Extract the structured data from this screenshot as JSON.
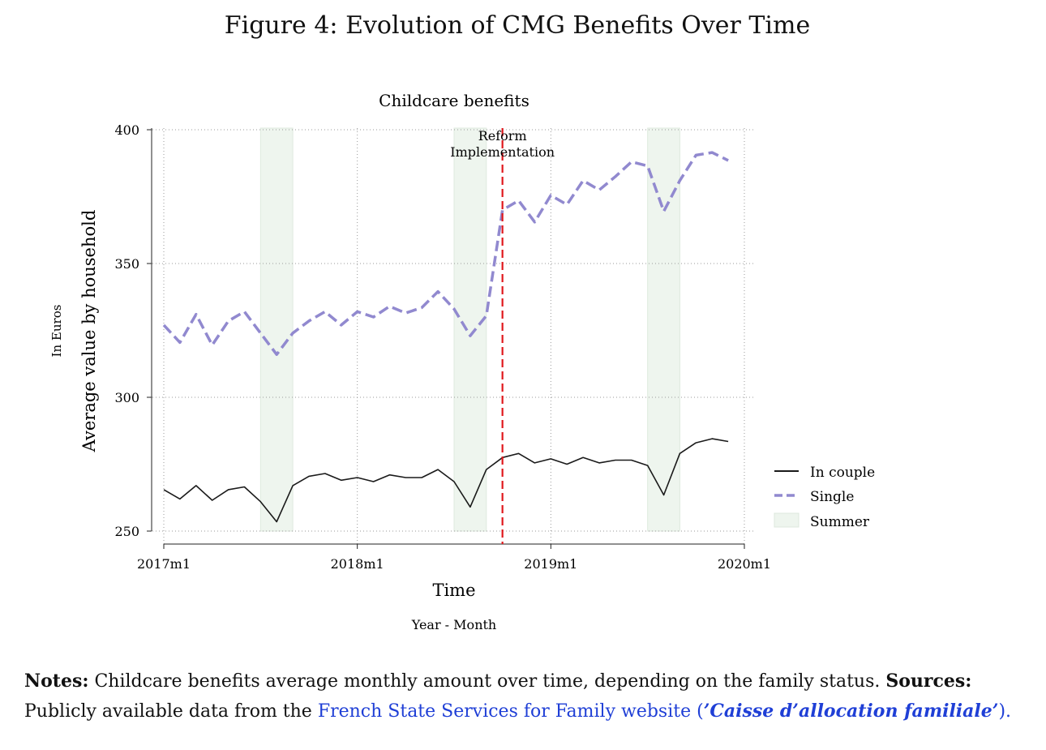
{
  "figure_title": "Figure 4: Evolution of CMG Benefits Over Time",
  "chart_data": {
    "type": "line",
    "title": "Childcare benefits",
    "xlabel": "Time",
    "xsublabel": "Year - Month",
    "ylabel": "Average value by household",
    "ysublabel": "In Euros",
    "ylim": [
      245,
      400
    ],
    "xlim": [
      0,
      36
    ],
    "y_ticks": [
      250,
      300,
      350,
      400
    ],
    "x_ticks": [
      {
        "label": "2017m1",
        "value": 0
      },
      {
        "label": "2018m1",
        "value": 12
      },
      {
        "label": "2019m1",
        "value": 24
      },
      {
        "label": "2020m1",
        "value": 36
      }
    ],
    "grid": true,
    "reform": {
      "x": 21,
      "label_line1": "Reform",
      "label_line2": "Implementation",
      "color": "#e0191d"
    },
    "summer_periods": [
      [
        6,
        8
      ],
      [
        18,
        20
      ],
      [
        30,
        32
      ]
    ],
    "series": [
      {
        "name": "In couple",
        "color": "#1a1a1a",
        "style": "solid",
        "x": [
          0,
          1,
          2,
          3,
          4,
          5,
          6,
          7,
          8,
          9,
          10,
          11,
          12,
          13,
          14,
          15,
          16,
          17,
          18,
          19,
          20,
          21,
          22,
          23,
          24,
          25,
          26,
          27,
          28,
          29,
          30,
          31,
          32,
          33,
          34,
          35
        ],
        "values": [
          265.5,
          262,
          267,
          261.5,
          265.5,
          266.5,
          261,
          253.5,
          267,
          270.5,
          271.5,
          269,
          270,
          268.5,
          271,
          270,
          270,
          273,
          268.5,
          259,
          273,
          277.5,
          279,
          275.5,
          277,
          275,
          277.5,
          275.5,
          276.5,
          276.5,
          274.5,
          263.5,
          279,
          283,
          284.5,
          283.5
        ]
      },
      {
        "name": "Single",
        "color": "#9189cf",
        "style": "dashed",
        "x": [
          0,
          1,
          2,
          3,
          4,
          5,
          6,
          7,
          8,
          9,
          10,
          11,
          12,
          13,
          14,
          15,
          16,
          17,
          18,
          19,
          20,
          21,
          22,
          23,
          24,
          25,
          26,
          27,
          28,
          29,
          30,
          31,
          32,
          33,
          34,
          35
        ],
        "values": [
          327,
          320.5,
          331,
          319.5,
          328.5,
          332,
          324,
          316,
          324,
          328.5,
          332,
          327,
          332,
          330,
          334,
          331.5,
          333.5,
          339.5,
          333,
          323,
          330.5,
          370,
          373.5,
          365.5,
          375.5,
          372,
          381,
          377.5,
          382.5,
          388,
          386.5,
          369.5,
          381,
          390.5,
          391.5,
          388.5
        ]
      }
    ],
    "legend": {
      "position": "right",
      "entries": [
        "In couple",
        "Single",
        "Summer"
      ],
      "summer_color": "#eef5ee"
    }
  },
  "notes": {
    "label": "Notes:",
    "text1": " Childcare benefits average monthly amount over time, depending on the family status. ",
    "sources_label": "Sources:",
    "text2": " Publicly available data from the ",
    "link_text": "French State Services for Family website",
    "open_paren": " (",
    "link_italic": "’Caisse d’allocation familiale’",
    "close": ")."
  }
}
